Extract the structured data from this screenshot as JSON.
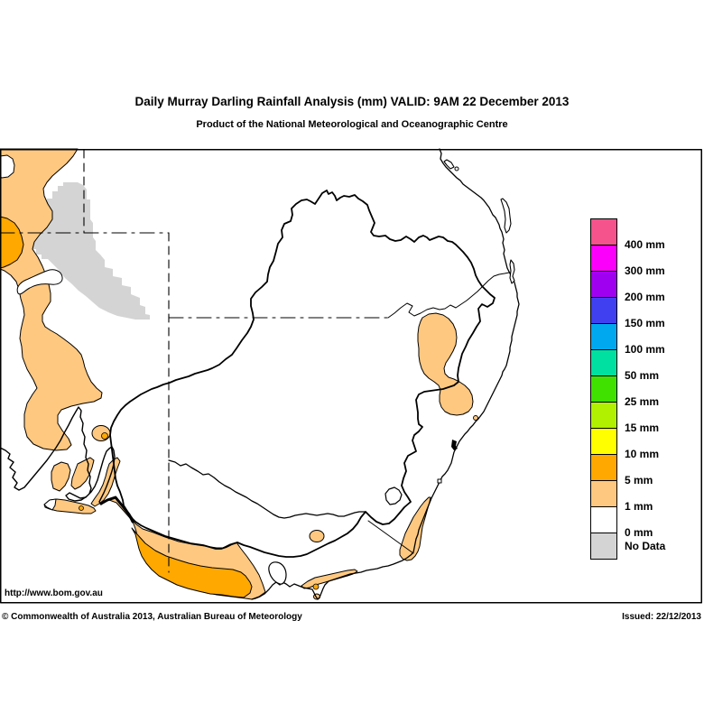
{
  "title": "Daily Murray Darling Rainfall Analysis (mm)  VALID: 9AM 22 December 2013",
  "subtitle": "Product of the National Meteorological and Oceanographic Centre",
  "footer": {
    "url": "http://www.bom.gov.au",
    "copyright": "© Commonwealth of Australia 2013, Australian Bureau of Meteorology",
    "issued": "Issued: 22/12/2013"
  },
  "legend": {
    "entries": [
      {
        "label": "400 mm",
        "color": "#F4538C"
      },
      {
        "label": "300 mm",
        "color": "#FB00FB"
      },
      {
        "label": "200 mm",
        "color": "#A000F0"
      },
      {
        "label": "150 mm",
        "color": "#4040F0"
      },
      {
        "label": "100 mm",
        "color": "#00A8F0"
      },
      {
        "label": "50 mm",
        "color": "#00E0A0"
      },
      {
        "label": "25 mm",
        "color": "#40E000"
      },
      {
        "label": "15 mm",
        "color": "#B0F000"
      },
      {
        "label": "10 mm",
        "color": "#FFFF00"
      },
      {
        "label": "5 mm",
        "color": "#FFA800"
      },
      {
        "label": "1 mm",
        "color": "#FFC880"
      },
      {
        "label": "0 mm",
        "color": "#FFFFFF"
      },
      {
        "label": "No Data",
        "color": "#D4D4D4"
      }
    ]
  },
  "map_colors": {
    "rain_light": "#FFC880",
    "rain_dark": "#FFA800",
    "no_data": "#D4D4D4"
  }
}
